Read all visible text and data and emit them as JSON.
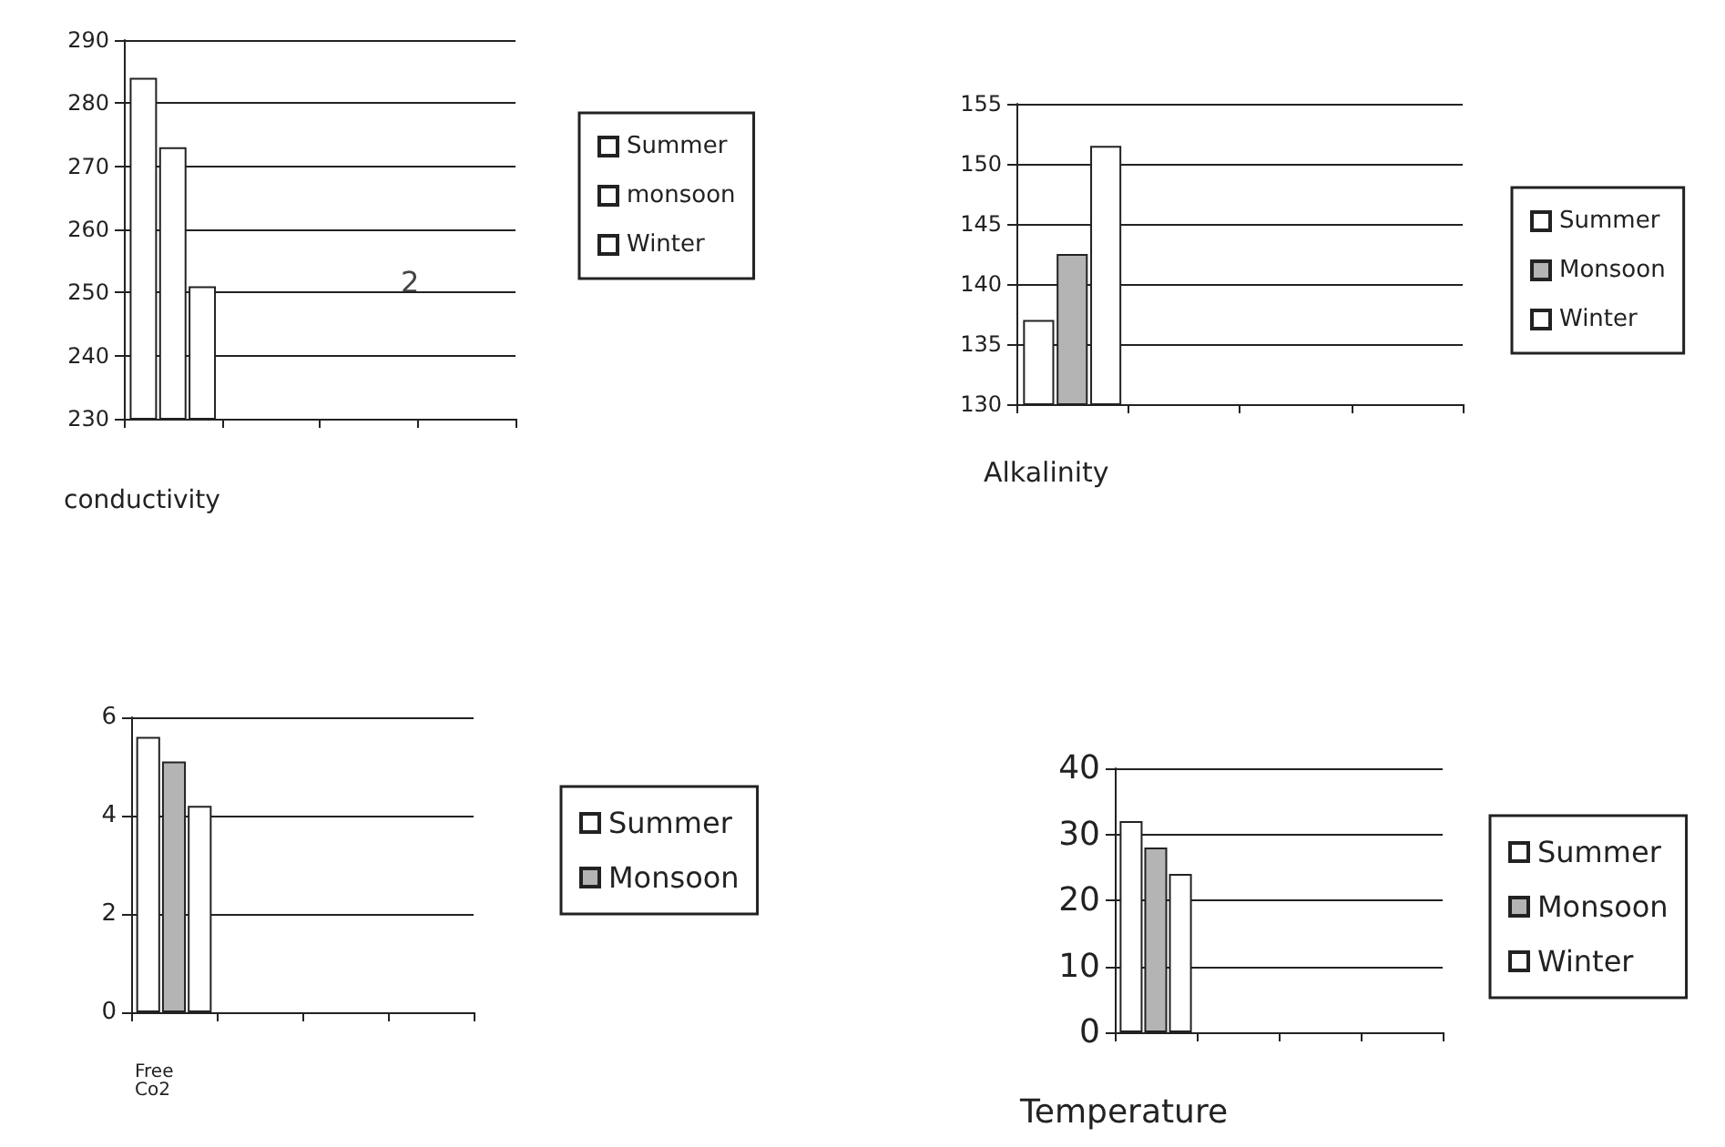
{
  "chart_data": [
    {
      "type": "bar",
      "xlabel": "conductivity",
      "categories": [
        null,
        null,
        null,
        null
      ],
      "series": [
        {
          "name": "Summer",
          "color": "#ffffff",
          "values": [
            284,
            null,
            null,
            null
          ]
        },
        {
          "name": "monsoon",
          "color": "#ffffff",
          "values": [
            273,
            null,
            null,
            null
          ]
        },
        {
          "name": "Winter",
          "color": "#ffffff",
          "values": [
            251,
            null,
            null,
            null
          ]
        }
      ],
      "ylim": [
        230,
        290
      ],
      "yticks": [
        230,
        240,
        250,
        260,
        270,
        280,
        290
      ],
      "grid": "y",
      "legend": "right",
      "annotations": [
        "2"
      ]
    },
    {
      "type": "bar",
      "xlabel": "Alkalinity",
      "categories": [
        null,
        null,
        null,
        null
      ],
      "series": [
        {
          "name": "Summer",
          "color": "#ffffff",
          "values": [
            137,
            null,
            null,
            null
          ]
        },
        {
          "name": "Monsoon",
          "color": "#b4b4b4",
          "values": [
            142.5,
            null,
            null,
            null
          ]
        },
        {
          "name": "Winter",
          "color": "#ffffff",
          "values": [
            151.5,
            null,
            null,
            null
          ]
        }
      ],
      "ylim": [
        130,
        155
      ],
      "yticks": [
        130,
        135,
        140,
        145,
        150,
        155
      ],
      "grid": "y",
      "legend": "right"
    },
    {
      "type": "bar",
      "xlabel": "Free Co2",
      "categories": [
        null,
        null,
        null,
        null
      ],
      "series": [
        {
          "name": "Summer",
          "color": "#ffffff",
          "values": [
            5.6,
            null,
            null,
            null
          ]
        },
        {
          "name": "Monsoon",
          "color": "#b4b4b4",
          "values": [
            5.1,
            null,
            null,
            null
          ]
        },
        {
          "color": "#ffffff",
          "values": [
            4.2,
            null,
            null,
            null
          ]
        }
      ],
      "ylim": [
        0,
        6
      ],
      "yticks": [
        0,
        2,
        4,
        6
      ],
      "grid": "y",
      "legend": "right"
    },
    {
      "type": "bar",
      "xlabel": "Temperature",
      "categories": [
        null,
        null,
        null,
        null
      ],
      "series": [
        {
          "name": "Summer",
          "color": "#ffffff",
          "values": [
            32,
            null,
            null,
            null
          ]
        },
        {
          "name": "Monsoon",
          "color": "#b4b4b4",
          "values": [
            28,
            null,
            null,
            null
          ]
        },
        {
          "name": "Winter",
          "color": "#ffffff",
          "values": [
            24,
            null,
            null,
            null
          ]
        }
      ],
      "ylim": [
        0,
        40
      ],
      "yticks": [
        0,
        10,
        20,
        30,
        40
      ],
      "grid": "y",
      "legend": "right"
    }
  ]
}
